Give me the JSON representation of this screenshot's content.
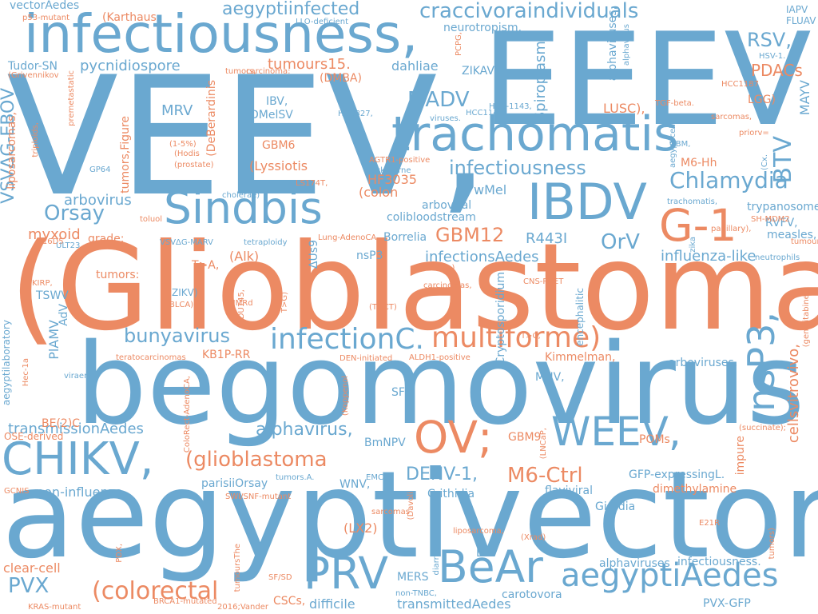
{
  "colors": {
    "blue": "#6aa8d0",
    "orange": "#ec8a63"
  },
  "words": [
    {
      "text": "VEEV,",
      "color": "blue"
    },
    {
      "text": "EEEV,",
      "color": "blue"
    },
    {
      "text": "(Glioblastoma",
      "color": "orange"
    },
    {
      "text": "begomovirus",
      "color": "blue"
    },
    {
      "text": "aegyptivector",
      "color": "blue"
    },
    {
      "text": "infectiousness,",
      "color": "blue"
    },
    {
      "text": "trachomatis",
      "color": "blue"
    },
    {
      "text": "Sindbis",
      "color": "blue"
    },
    {
      "text": "IBDV",
      "color": "blue"
    },
    {
      "text": "G-1",
      "color": "orange"
    },
    {
      "text": "infectionC.",
      "color": "blue"
    },
    {
      "text": "multiforme)",
      "color": "orange"
    },
    {
      "text": "OV;",
      "color": "orange"
    },
    {
      "text": "WEEV,",
      "color": "blue"
    },
    {
      "text": "CHIKV,",
      "color": "blue"
    },
    {
      "text": "PRV",
      "color": "blue"
    },
    {
      "text": "BeAr",
      "color": "blue"
    },
    {
      "text": "aegyptiAedes",
      "color": "blue"
    },
    {
      "text": "nsP3,",
      "color": "blue"
    },
    {
      "text": "craccivoraindividuals",
      "color": "blue"
    },
    {
      "text": "aegyptiinfected",
      "color": "blue"
    },
    {
      "text": "neurotropism.",
      "color": "blue"
    },
    {
      "text": "vectorAedes",
      "color": "blue"
    },
    {
      "text": "infectiousness",
      "color": "blue"
    },
    {
      "text": "Chlamydia",
      "color": "blue"
    },
    {
      "text": "GBM12",
      "color": "orange"
    },
    {
      "text": "bunyavirus",
      "color": "blue"
    },
    {
      "text": "(glioblastoma",
      "color": "orange"
    },
    {
      "text": "(colorectal",
      "color": "orange"
    },
    {
      "text": "MADV",
      "color": "blue"
    },
    {
      "text": "pycnidiospore",
      "color": "blue"
    },
    {
      "text": "Orsay",
      "color": "blue"
    },
    {
      "text": "PVX",
      "color": "blue"
    },
    {
      "text": "M6-Ctrl",
      "color": "orange"
    },
    {
      "text": "DENV-1,",
      "color": "blue"
    },
    {
      "text": "alphavirus,",
      "color": "blue"
    },
    {
      "text": "transmissionAedes",
      "color": "blue"
    },
    {
      "text": "BTV",
      "color": "blue"
    },
    {
      "text": "RSV,",
      "color": "blue"
    },
    {
      "text": "PDACs",
      "color": "orange"
    },
    {
      "text": "OrV",
      "color": "blue"
    },
    {
      "text": "R443I",
      "color": "blue"
    },
    {
      "text": "myxoid",
      "color": "orange"
    },
    {
      "text": "arbovirus",
      "color": "blue"
    },
    {
      "text": "infectionsAedes",
      "color": "blue"
    },
    {
      "text": "influenza-like",
      "color": "blue"
    },
    {
      "text": "cellsvitrovivo,",
      "color": "orange"
    },
    {
      "text": "VSVΔG-EBOV",
      "color": "blue"
    },
    {
      "text": "tumours15.",
      "color": "orange"
    },
    {
      "text": "Spiroplasma",
      "color": "blue"
    },
    {
      "text": "MAYV",
      "color": "blue"
    },
    {
      "text": "IAPV",
      "color": "blue"
    },
    {
      "text": "FLUAV",
      "color": "blue"
    },
    {
      "text": "ZIKAV",
      "color": "blue"
    },
    {
      "text": "dahliae",
      "color": "blue"
    },
    {
      "text": "Tudor-SN",
      "color": "blue"
    },
    {
      "text": "LUSC),",
      "color": "orange"
    },
    {
      "text": "MRV",
      "color": "blue"
    },
    {
      "text": "IBV,",
      "color": "blue"
    },
    {
      "text": "DMelSV",
      "color": "blue"
    },
    {
      "text": "GBM6",
      "color": "orange"
    },
    {
      "text": "(Lyssiotis",
      "color": "orange"
    },
    {
      "text": "wMel",
      "color": "blue"
    },
    {
      "text": "HF3035",
      "color": "orange"
    },
    {
      "text": "(colon",
      "color": "orange"
    },
    {
      "text": "arboviral",
      "color": "blue"
    },
    {
      "text": "colibloodstream",
      "color": "blue"
    },
    {
      "text": "Borrelia",
      "color": "blue"
    },
    {
      "text": "nsP3",
      "color": "blue"
    },
    {
      "text": "(Alk)",
      "color": "orange"
    },
    {
      "text": "T>A,",
      "color": "orange"
    },
    {
      "text": "TSWV",
      "color": "blue"
    },
    {
      "text": "ZIKV)",
      "color": "blue"
    },
    {
      "text": "Cryptosporidium",
      "color": "blue"
    },
    {
      "text": "KB1P-RR",
      "color": "orange"
    },
    {
      "text": "PlAMV",
      "color": "blue"
    },
    {
      "text": "BE(2)C",
      "color": "orange"
    },
    {
      "text": "OSE-derived",
      "color": "orange"
    },
    {
      "text": "BmNPV",
      "color": "blue"
    },
    {
      "text": "non-influenza",
      "color": "blue"
    },
    {
      "text": "parisiiOrsay",
      "color": "blue"
    },
    {
      "text": "WNV,",
      "color": "blue"
    },
    {
      "text": "Crithidia",
      "color": "blue"
    },
    {
      "text": "GBM9",
      "color": "orange"
    },
    {
      "text": "POMs",
      "color": "orange"
    },
    {
      "text": "GFP-expressingL.",
      "color": "blue"
    },
    {
      "text": "dimethylamine",
      "color": "orange"
    },
    {
      "text": "flaviviral",
      "color": "blue"
    },
    {
      "text": "Giardia",
      "color": "blue"
    },
    {
      "text": "clear-cell",
      "color": "orange"
    },
    {
      "text": "EhV",
      "color": "blue"
    },
    {
      "text": "MERS",
      "color": "blue"
    },
    {
      "text": "alphaviruses",
      "color": "blue"
    },
    {
      "text": "infectiousness.",
      "color": "blue"
    },
    {
      "text": "carotovora",
      "color": "blue"
    },
    {
      "text": "transmittedAedes",
      "color": "blue"
    },
    {
      "text": "difficile",
      "color": "blue"
    },
    {
      "text": "CSCs,",
      "color": "orange"
    },
    {
      "text": "PVX-GFP",
      "color": "blue"
    },
    {
      "text": "SFV",
      "color": "blue"
    },
    {
      "text": "MHV,",
      "color": "blue"
    },
    {
      "text": "Kimmelman,",
      "color": "orange"
    },
    {
      "text": "arboviruses,",
      "color": "blue"
    },
    {
      "text": "trypanosome",
      "color": "blue"
    },
    {
      "text": "RVFV,",
      "color": "blue"
    },
    {
      "text": "measles,",
      "color": "blue"
    },
    {
      "text": "M6-Hh",
      "color": "orange"
    },
    {
      "text": "LGG)",
      "color": "orange"
    },
    {
      "text": "alphaviruses,",
      "color": "blue"
    },
    {
      "text": "(DMBA)",
      "color": "orange"
    },
    {
      "text": "(Karthaus",
      "color": "orange"
    },
    {
      "text": "(DeBerardinis",
      "color": "orange"
    },
    {
      "text": "tumors,Figure",
      "color": "orange"
    },
    {
      "text": "liposarcomas,",
      "color": "orange"
    },
    {
      "text": "aegyptilaboratory",
      "color": "blue"
    },
    {
      "text": "grade;",
      "color": "orange"
    },
    {
      "text": "tumors:",
      "color": "orange"
    },
    {
      "text": "HSV-1.",
      "color": "blue"
    },
    {
      "text": "encephalitic",
      "color": "blue"
    },
    {
      "text": "impure",
      "color": "orange"
    },
    {
      "text": "B16D5",
      "color": "orange"
    },
    {
      "text": "ΔUs9",
      "color": "blue"
    },
    {
      "text": "AdV",
      "color": "blue"
    },
    {
      "text": "LLO-deficient",
      "color": "blue"
    },
    {
      "text": "p53-mutant",
      "color": "orange"
    },
    {
      "text": "HCC827,",
      "color": "blue"
    },
    {
      "text": "HCC1143",
      "color": "blue"
    },
    {
      "text": "HCC-1143,",
      "color": "blue"
    },
    {
      "text": "viruses.",
      "color": "blue"
    },
    {
      "text": "AGTR1-positive",
      "color": "orange"
    },
    {
      "text": "tick-borne",
      "color": "blue"
    },
    {
      "text": "TGF-beta.",
      "color": "orange"
    },
    {
      "text": "sarcomas,",
      "color": "orange"
    },
    {
      "text": "HCC1187",
      "color": "orange"
    },
    {
      "text": "CNS-PNET",
      "color": "orange"
    },
    {
      "text": "ALDH1-positive",
      "color": "orange"
    },
    {
      "text": "DEN-initiated",
      "color": "orange"
    },
    {
      "text": "ColoRect-AdenoCA,",
      "color": "orange"
    },
    {
      "text": "(Koppenol",
      "color": "orange"
    },
    {
      "text": "(Davoli",
      "color": "orange"
    },
    {
      "text": "(Xrad)",
      "color": "orange"
    },
    {
      "text": "liposarcoma,",
      "color": "orange"
    },
    {
      "text": "tumoursThe",
      "color": "orange"
    },
    {
      "text": "BRCA1-mutated",
      "color": "orange"
    },
    {
      "text": "KRAS-mutant",
      "color": "orange"
    },
    {
      "text": "2016;Vander",
      "color": "orange"
    },
    {
      "text": "non-TNBC,",
      "color": "blue"
    },
    {
      "text": "SF/SD",
      "color": "orange"
    },
    {
      "text": "GCNIS",
      "color": "orange"
    },
    {
      "text": "E21R",
      "color": "orange"
    },
    {
      "text": "(LX2)",
      "color": "orange"
    },
    {
      "text": "tumors.A.",
      "color": "blue"
    },
    {
      "text": "EMCV,",
      "color": "blue"
    },
    {
      "text": "SWI/SNF-mutant",
      "color": "orange"
    },
    {
      "text": "sarcomas",
      "color": "orange"
    },
    {
      "text": "toluol",
      "color": "orange"
    },
    {
      "text": "VSVΔG-MARV",
      "color": "blue"
    },
    {
      "text": "tetraploidy",
      "color": "blue"
    },
    {
      "text": "Lung-AdenoCA",
      "color": "orange"
    },
    {
      "text": "cholerae)",
      "color": "blue"
    },
    {
      "text": "LS174T,",
      "color": "orange"
    },
    {
      "text": "GP64",
      "color": "blue"
    },
    {
      "text": "(Hodis",
      "color": "orange"
    },
    {
      "text": "(prostate)",
      "color": "orange"
    },
    {
      "text": "(1-5%)",
      "color": "orange"
    },
    {
      "text": "neutrophils",
      "color": "blue"
    },
    {
      "text": "carcinomas,",
      "color": "orange"
    },
    {
      "text": "HER2+)",
      "color": "orange"
    },
    {
      "text": "(TGCT)",
      "color": "orange"
    },
    {
      "text": "T>C,",
      "color": "orange"
    },
    {
      "text": "DU145,",
      "color": "orange"
    },
    {
      "text": "MMRd",
      "color": "orange"
    },
    {
      "text": "BLCA)",
      "color": "orange"
    },
    {
      "text": "KIRP,",
      "color": "orange"
    },
    {
      "text": "Hec-1a",
      "color": "orange"
    },
    {
      "text": "viraemia",
      "color": "blue"
    },
    {
      "text": "teratocarcinomas",
      "color": "orange"
    },
    {
      "text": "(gemcitabine,",
      "color": "orange"
    },
    {
      "text": "(succinate);",
      "color": "orange"
    },
    {
      "text": "papillary),",
      "color": "orange"
    },
    {
      "text": "SH-MDM2",
      "color": "orange"
    },
    {
      "text": "tumour,",
      "color": "orange"
    },
    {
      "text": "GBM,",
      "color": "blue"
    },
    {
      "text": "priorv=",
      "color": "orange"
    },
    {
      "text": "(Cx.",
      "color": "blue"
    },
    {
      "text": "aegypticells",
      "color": "blue"
    },
    {
      "text": "alphavirus",
      "color": "blue"
    },
    {
      "text": "PCPG,",
      "color": "orange"
    },
    {
      "text": "(Grivennikov",
      "color": "orange"
    },
    {
      "text": "premetastatic",
      "color": "orange"
    },
    {
      "text": "triploids,",
      "color": "orange"
    },
    {
      "text": "ULT23",
      "color": "blue"
    },
    {
      "text": "diarrheal",
      "color": "blue"
    },
    {
      "text": "PDX,",
      "color": "orange"
    },
    {
      "text": "(LNCaP,",
      "color": "orange"
    },
    {
      "text": "trachomatis,",
      "color": "blue"
    },
    {
      "text": "T>G)",
      "color": "orange"
    },
    {
      "text": "tumors,",
      "color": "orange"
    },
    {
      "text": "carcinoma:",
      "color": "orange"
    },
    {
      "text": "tumors)",
      "color": "orange"
    },
    {
      "text": "zika",
      "color": "blue"
    }
  ]
}
